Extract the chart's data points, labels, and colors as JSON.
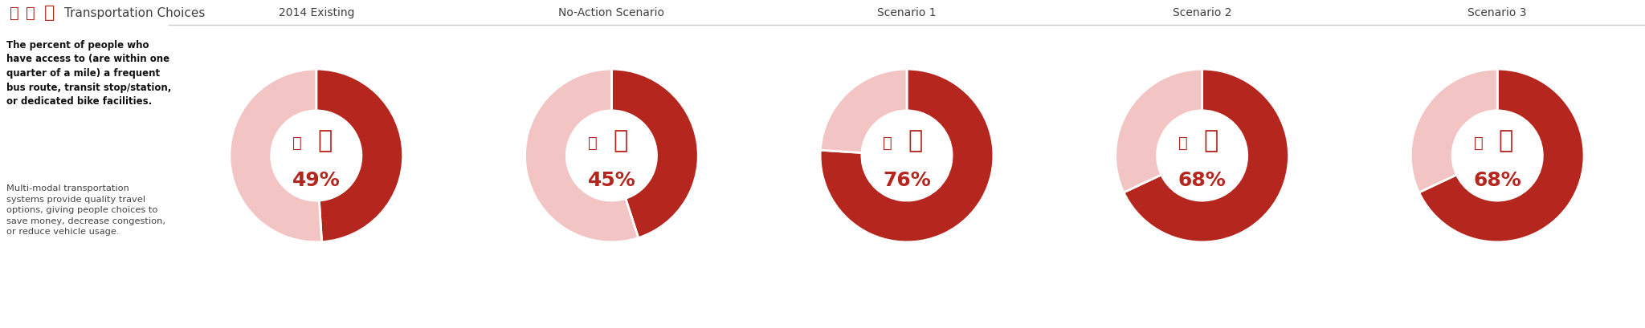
{
  "title": "Transportation Choices",
  "header_line_color": "#cccccc",
  "background_color": "#ffffff",
  "dark_red": "#b5271e",
  "light_red": "#f2c4c4",
  "white": "#ffffff",
  "text_dark": "#404040",
  "text_red": "#b5271e",
  "scenarios": [
    {
      "label": "2014 Existing",
      "value": 49
    },
    {
      "label": "No-Action Scenario",
      "value": 45
    },
    {
      "label": "Scenario 1",
      "value": 76
    },
    {
      "label": "Scenario 2",
      "value": 68
    },
    {
      "label": "Scenario 3",
      "value": 68
    }
  ],
  "left_title_bold": "The percent of people who\nhave access to (are within one\nquarter of a mile) a frequent\nbus route, transit stop/station,\nor dedicated bike facilities.",
  "left_body": "Multi-modal transportation\nsystems provide quality travel\noptions, giving people choices to\nsave money, decrease congestion,\nor reduce vehicle usage.",
  "donut_outer_r": 1.0,
  "donut_inner_r": 0.52,
  "figwidth": 20.48,
  "figheight": 4.1,
  "dpi": 100
}
